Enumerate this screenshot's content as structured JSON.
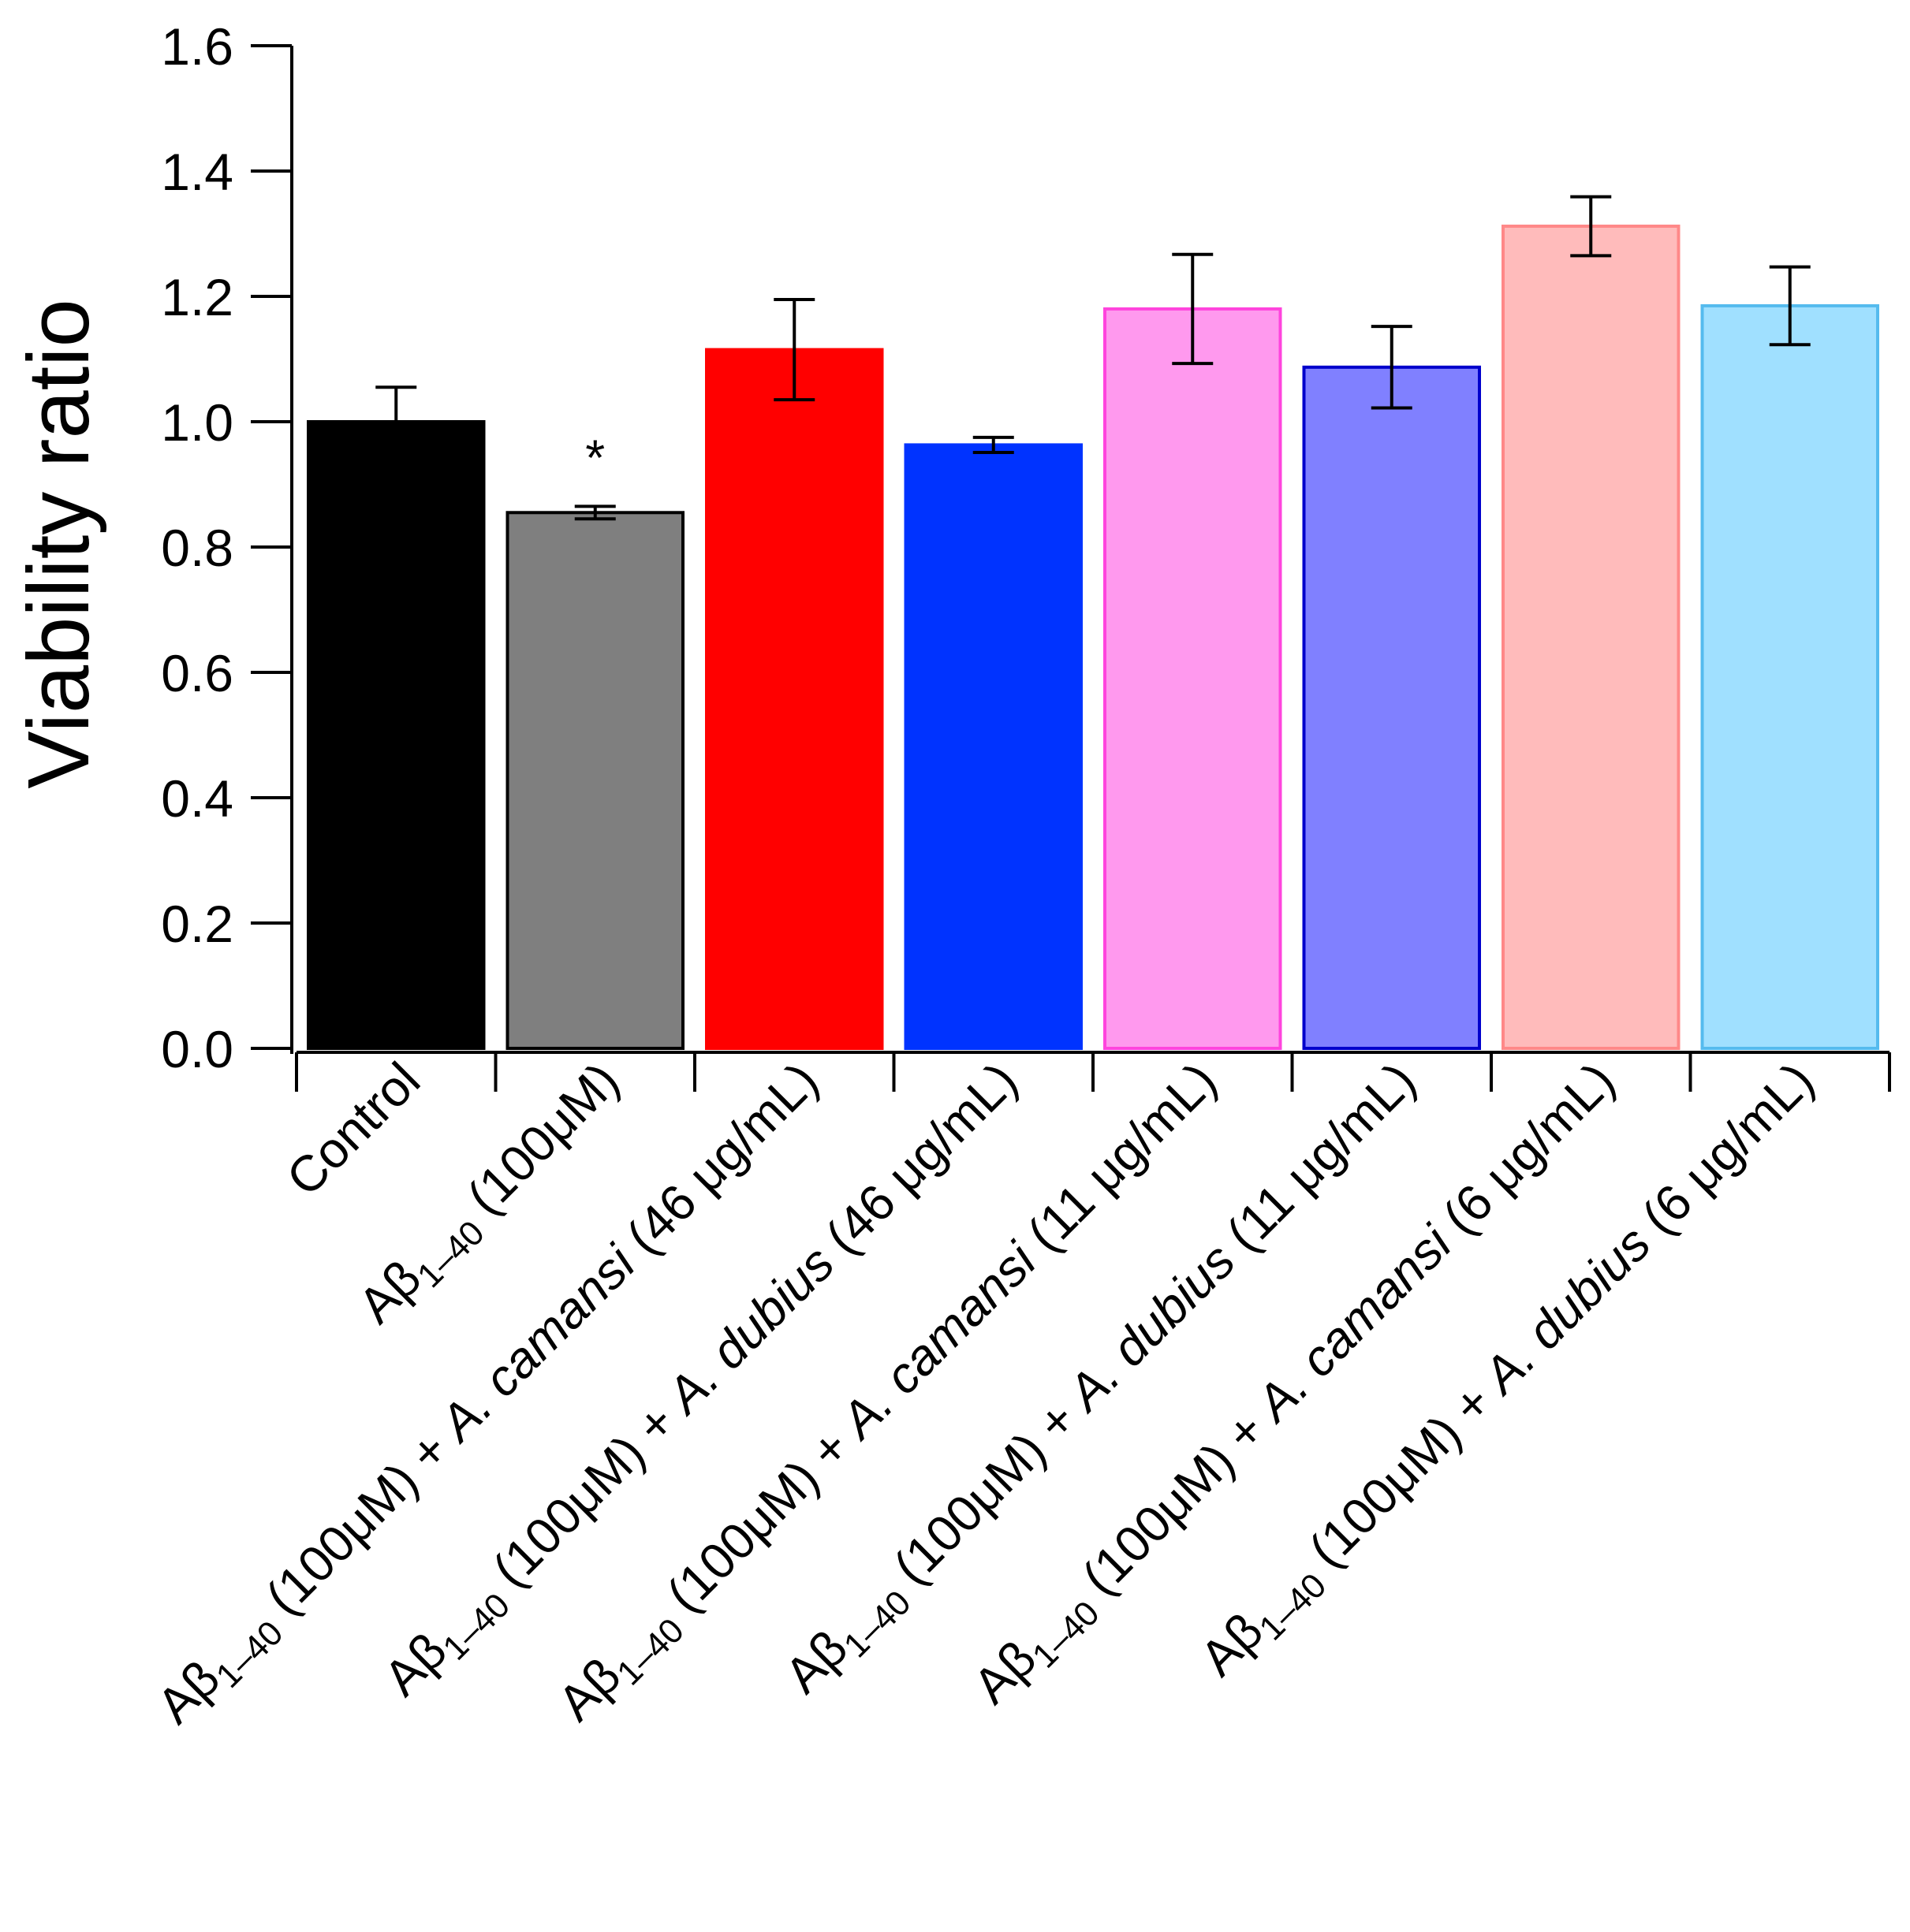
{
  "chart_data": {
    "type": "bar",
    "title": "",
    "xlabel": "",
    "ylabel": "Viability ratio",
    "ylim": [
      0,
      1.6
    ],
    "yticks": [
      "0.0",
      "0.2",
      "0.4",
      "0.6",
      "0.8",
      "1.0",
      "1.2",
      "1.4",
      "1.6"
    ],
    "grid": false,
    "bars": [
      {
        "label_parts": [
          {
            "t": "Control"
          }
        ],
        "value": 1.0,
        "error": 0.055,
        "fill": "#000000",
        "stroke": "#000000",
        "annotation": ""
      },
      {
        "label_parts": [
          {
            "t": "Aβ"
          },
          {
            "t": "1–40",
            "sub": true
          },
          {
            "t": " (100μM)"
          }
        ],
        "value": 0.855,
        "error": 0.01,
        "fill": "#7f7f7f",
        "stroke": "#000000",
        "annotation": "*"
      },
      {
        "label_parts": [
          {
            "t": "Aβ"
          },
          {
            "t": "1–40",
            "sub": true
          },
          {
            "t": " (100μM) + "
          },
          {
            "t": "A.  camansi",
            "it": true
          },
          {
            "t": " (46 μg/mL)"
          }
        ],
        "value": 1.115,
        "error": 0.08,
        "fill": "#ff0000",
        "stroke": "#ff0000",
        "annotation": ""
      },
      {
        "label_parts": [
          {
            "t": "Aβ"
          },
          {
            "t": "1–40",
            "sub": true
          },
          {
            "t": " (100μM) + "
          },
          {
            "t": "A.  dubius",
            "it": true
          },
          {
            "t": " (46 μg/mL)"
          }
        ],
        "value": 0.963,
        "error": 0.012,
        "fill": "#0033ff",
        "stroke": "#0033ff",
        "annotation": ""
      },
      {
        "label_parts": [
          {
            "t": "Aβ"
          },
          {
            "t": "1–40",
            "sub": true
          },
          {
            "t": " (100μM) + "
          },
          {
            "t": "A.  camansi",
            "it": true
          },
          {
            "t": "  (11 μg/mL)"
          }
        ],
        "value": 1.18,
        "error": 0.087,
        "fill": "#ff99ee",
        "stroke": "#ff44dd",
        "annotation": ""
      },
      {
        "label_parts": [
          {
            "t": "Aβ"
          },
          {
            "t": "1–40",
            "sub": true
          },
          {
            "t": " (100μM) + "
          },
          {
            "t": "A.  dubius",
            "it": true
          },
          {
            "t": "  (11 μg/mL)"
          }
        ],
        "value": 1.087,
        "error": 0.065,
        "fill": "#8080ff",
        "stroke": "#0000cc",
        "annotation": ""
      },
      {
        "label_parts": [
          {
            "t": "Aβ"
          },
          {
            "t": "1–40",
            "sub": true
          },
          {
            "t": " (100μM) + "
          },
          {
            "t": "A.  camansi",
            "it": true
          },
          {
            "t": "  (6 μg/mL)"
          }
        ],
        "value": 1.312,
        "error": 0.047,
        "fill": "#ffbbbb",
        "stroke": "#ff8888",
        "annotation": ""
      },
      {
        "label_parts": [
          {
            "t": "Aβ"
          },
          {
            "t": "1–40",
            "sub": true
          },
          {
            "t": " (100μM) + "
          },
          {
            "t": "A.  dubius",
            "it": true
          },
          {
            "t": "  (6 μg/mL)"
          }
        ],
        "value": 1.185,
        "error": 0.062,
        "fill": "#a0e0ff",
        "stroke": "#55bbee",
        "annotation": ""
      }
    ]
  }
}
